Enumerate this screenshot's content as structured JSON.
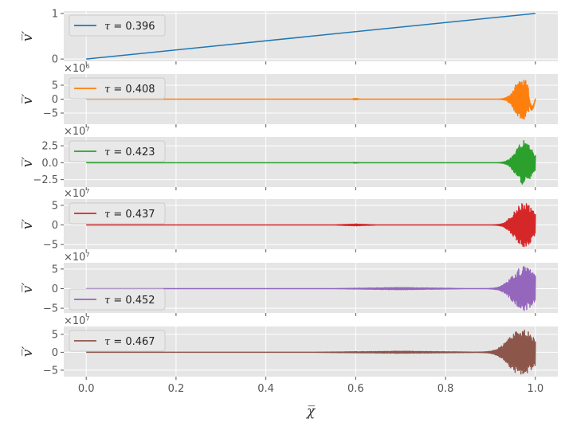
{
  "chart_data": {
    "type": "line",
    "xlabel": "χ̅",
    "x_ticks": [
      "0.0",
      "0.2",
      "0.4",
      "0.6",
      "0.8",
      "1.0"
    ],
    "xlim": [
      -0.05,
      1.05
    ],
    "panels": [
      {
        "legend": "τ = 0.396",
        "legend_symbol": "τ",
        "legend_value": " = 0.396",
        "ylabel": "v̅′",
        "color": "#1f77b4",
        "offset_text": "",
        "ylim": [
          -0.05,
          1.05
        ],
        "y_ticks": [
          {
            "value": 0,
            "label": "0"
          },
          {
            "value": 1,
            "label": "1"
          }
        ],
        "legend_pos": "upper-left",
        "kind": "linear",
        "y_start": 0,
        "y_end": 1
      },
      {
        "legend": "τ = 0.408",
        "legend_symbol": "τ",
        "legend_value": " = 0.408",
        "ylabel": "v̅′",
        "color": "#ff7f0e",
        "offset_text": "×10⁶",
        "ylim": [
          -9,
          9
        ],
        "y_ticks": [
          {
            "value": 5,
            "label": "5"
          },
          {
            "value": 0,
            "label": "0"
          },
          {
            "value": -5,
            "label": "−5"
          }
        ],
        "legend_pos": "upper-left",
        "kind": "burst",
        "burst_center": 0.97,
        "burst_width": 0.022,
        "burst_amplitude": 7.8,
        "tail_dip": -3.5,
        "noise_start": 0.59,
        "noise_end": 0.61,
        "noise_amplitude": 0.3
      },
      {
        "legend": "τ = 0.423",
        "legend_symbol": "τ",
        "legend_value": " = 0.423",
        "ylabel": "v̅′",
        "color": "#2ca02c",
        "offset_text": "×10⁷",
        "ylim": [
          -3.6,
          3.8
        ],
        "y_ticks": [
          {
            "value": 2.5,
            "label": "2.5"
          },
          {
            "value": 0,
            "label": "0.0"
          },
          {
            "value": -2.5,
            "label": "−2.5"
          }
        ],
        "legend_pos": "upper-left",
        "kind": "burst",
        "burst_center": 0.975,
        "burst_width": 0.025,
        "burst_amplitude": 3.3,
        "tail_dip": 0,
        "noise_start": 0.59,
        "noise_end": 0.61,
        "noise_amplitude": 0.06
      },
      {
        "legend": "τ = 0.437",
        "legend_symbol": "τ",
        "legend_value": " = 0.437",
        "ylabel": "v̅′",
        "color": "#d62728",
        "offset_text": "×10⁷",
        "ylim": [
          -6.2,
          6.6
        ],
        "y_ticks": [
          {
            "value": 5,
            "label": "5"
          },
          {
            "value": 0,
            "label": "0"
          },
          {
            "value": -5,
            "label": "−5"
          }
        ],
        "legend_pos": "upper-left",
        "kind": "burst",
        "burst_center": 0.975,
        "burst_width": 0.03,
        "burst_amplitude": 5.7,
        "tail_dip": 0,
        "noise_start": 0.55,
        "noise_end": 0.65,
        "noise_amplitude": 0.25
      },
      {
        "legend": "τ = 0.452",
        "legend_symbol": "τ",
        "legend_value": " = 0.452",
        "ylabel": "v̅′",
        "color": "#9467bd",
        "offset_text": "×10⁷",
        "ylim": [
          -6.2,
          6.6
        ],
        "y_ticks": [
          {
            "value": 5,
            "label": "5"
          },
          {
            "value": 0,
            "label": "0"
          },
          {
            "value": -5,
            "label": "−5"
          }
        ],
        "legend_pos": "lower-left",
        "kind": "burst",
        "burst_center": 0.975,
        "burst_width": 0.035,
        "burst_amplitude": 5.7,
        "tail_dip": 0,
        "noise_start": 0.55,
        "noise_end": 0.85,
        "noise_amplitude": 0.3
      },
      {
        "legend": "τ = 0.467",
        "legend_symbol": "τ",
        "legend_value": " = 0.467",
        "ylabel": "v̅′",
        "color": "#8c564b",
        "offset_text": "×10⁷",
        "ylim": [
          -6.8,
          7.2
        ],
        "y_ticks": [
          {
            "value": 5,
            "label": "5"
          },
          {
            "value": 0,
            "label": "0"
          },
          {
            "value": -5,
            "label": "−5"
          }
        ],
        "legend_pos": "upper-left",
        "kind": "burst",
        "burst_center": 0.97,
        "burst_width": 0.04,
        "burst_amplitude": 6.5,
        "tail_dip": 0,
        "noise_start": 0.5,
        "noise_end": 0.9,
        "noise_amplitude": 0.3
      }
    ]
  }
}
